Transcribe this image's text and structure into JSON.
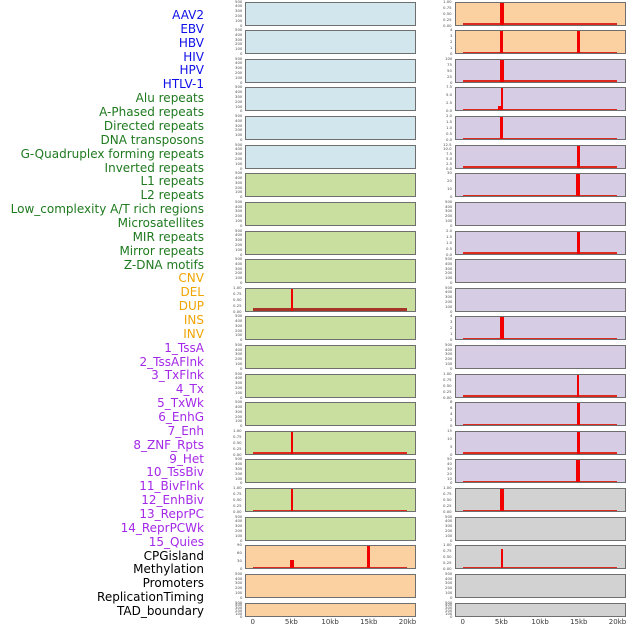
{
  "chart_data": {
    "type": "line",
    "title": "",
    "x_axis": {
      "tick_labels": [
        "0",
        "5kb",
        "10kb",
        "15kb",
        "20kb"
      ],
      "tick_kb": [
        0,
        5,
        10,
        15,
        20
      ],
      "range_kb": [
        0,
        20
      ]
    },
    "categories": {
      "virus": {
        "label_color": "#0f0fe8",
        "panel_color": "#d2e6ee"
      },
      "repeat": {
        "label_color": "#1f7a1f",
        "panel_color": "#c8dfa0"
      },
      "sv": {
        "label_color": "#f0a400",
        "panel_color": "#fbd1a2"
      },
      "chromatin": {
        "label_color": "#a428e8",
        "panel_color": "#d6cce4"
      },
      "other": {
        "label_color": "#000000",
        "panel_color": "#d2d2d2"
      }
    },
    "colors": {
      "spike": "#f20000",
      "baseline": "#dd2a1e",
      "baseline_dark": "#a63528",
      "panel_border": "#6f6f6f",
      "tick_text": "#4a4a4a",
      "axis_text": "#3c3c3c"
    },
    "rows": [
      {
        "l": "AAV2",
        "c": "virus",
        "col": 1,
        "t": [
          "500",
          "400",
          "300",
          "200",
          "100",
          "0"
        ],
        "s": [],
        "b": 0
      },
      {
        "l": "EBV",
        "c": "virus",
        "col": 1,
        "t": [
          "500",
          "400",
          "300",
          "200",
          "100",
          "0"
        ],
        "s": [],
        "b": 0
      },
      {
        "l": "HBV",
        "c": "virus",
        "col": 1,
        "t": [
          "500",
          "400",
          "300",
          "200",
          "100",
          "0"
        ],
        "s": [],
        "b": 0
      },
      {
        "l": "HIV",
        "c": "virus",
        "col": 1,
        "t": [
          "500",
          "400",
          "300",
          "200",
          "100",
          "0"
        ],
        "s": [],
        "b": 0
      },
      {
        "l": "HPV",
        "c": "virus",
        "col": 1,
        "t": [
          "500",
          "400",
          "300",
          "200",
          "100",
          "0"
        ],
        "s": [],
        "b": 0
      },
      {
        "l": "HTLV-1",
        "c": "virus",
        "col": 1,
        "t": [
          "500",
          "400",
          "300",
          "200",
          "100",
          "0"
        ],
        "s": [],
        "b": 0
      },
      {
        "l": "Alu repeats",
        "c": "repeat",
        "col": 1,
        "t": [
          "500",
          "400",
          "300",
          "200",
          "100",
          "0"
        ],
        "s": [],
        "b": 0
      },
      {
        "l": "A-Phased repeats",
        "c": "repeat",
        "col": 1,
        "t": [
          "500",
          "400",
          "300",
          "200",
          "100",
          "0"
        ],
        "s": [],
        "b": 0
      },
      {
        "l": "Directed repeats",
        "c": "repeat",
        "col": 1,
        "t": [
          "500",
          "400",
          "300",
          "200",
          "100",
          "0"
        ],
        "s": [],
        "b": 0
      },
      {
        "l": "DNA transposons",
        "c": "repeat",
        "col": 1,
        "t": [
          "500",
          "400",
          "300",
          "200",
          "100",
          "0"
        ],
        "s": [],
        "b": 0
      },
      {
        "l": "G-Quadruplex forming repeats",
        "c": "repeat",
        "col": 1,
        "t": [
          "1.00",
          "0.75",
          "0.50",
          "0.25",
          "0.00"
        ],
        "s": [
          {
            "kb": 5,
            "v": 1.0,
            "h": 1,
            "w": 2.5
          }
        ],
        "b": 2
      },
      {
        "l": "Inverted repeats",
        "c": "repeat",
        "col": 1,
        "t": [
          "500",
          "400",
          "300",
          "200",
          "100",
          "0"
        ],
        "s": [],
        "b": 0
      },
      {
        "l": "L1 repeats",
        "c": "repeat",
        "col": 1,
        "t": [
          "500",
          "400",
          "300",
          "200",
          "100",
          "0"
        ],
        "s": [],
        "b": 0
      },
      {
        "l": "L2 repeats",
        "c": "repeat",
        "col": 1,
        "t": [
          "500",
          "400",
          "300",
          "200",
          "100",
          "0"
        ],
        "s": [],
        "b": 0
      },
      {
        "l": "Low_complexity A/T rich regions",
        "c": "repeat",
        "col": 1,
        "t": [
          "500",
          "400",
          "300",
          "200",
          "100",
          "0"
        ],
        "s": [],
        "b": 0
      },
      {
        "l": "Microsatellites",
        "c": "repeat",
        "col": 1,
        "t": [
          "1.00",
          "0.75",
          "0.50",
          "0.25",
          "0.00"
        ],
        "s": [
          {
            "kb": 5,
            "v": 1.0,
            "h": 1,
            "w": 2
          }
        ],
        "b": 1
      },
      {
        "l": "MIR repeats",
        "c": "repeat",
        "col": 1,
        "t": [
          "500",
          "400",
          "300",
          "200",
          "100",
          "0"
        ],
        "s": [],
        "b": 0
      },
      {
        "l": "Mirror repeats",
        "c": "repeat",
        "col": 1,
        "t": [
          "1.00",
          "0.75",
          "0.50",
          "0.25",
          "0.00"
        ],
        "s": [
          {
            "kb": 5,
            "v": 1.0,
            "h": 1,
            "w": 2
          }
        ],
        "b": 1
      },
      {
        "l": "Z-DNA motifs",
        "c": "repeat",
        "col": 1,
        "t": [
          "500",
          "400",
          "300",
          "200",
          "100",
          "0"
        ],
        "s": [],
        "b": 0
      },
      {
        "l": "CNV",
        "c": "sv",
        "col": 1,
        "t": [
          "90",
          "60",
          "30",
          "0"
        ],
        "s": [
          {
            "kb": 5,
            "v": 35,
            "h": 0.4,
            "w": 4
          },
          {
            "kb": 15,
            "v": 95,
            "h": 1,
            "w": 3
          }
        ],
        "b": 1
      },
      {
        "l": "DEL",
        "c": "sv",
        "col": 1,
        "t": [
          "500",
          "400",
          "300",
          "200",
          "100",
          "0"
        ],
        "s": [],
        "b": 0
      },
      {
        "l": "DUP",
        "c": "sv",
        "col": 1,
        "t": [
          "500",
          "400",
          "300",
          "200",
          "100",
          "0"
        ],
        "s": [],
        "b": 0
      },
      {
        "l": "INS",
        "c": "sv",
        "col": 2,
        "t": [
          "1.00",
          "0.75",
          "0.50",
          "0.25",
          "0.00"
        ],
        "s": [
          {
            "kb": 5,
            "v": 1.0,
            "h": 1,
            "w": 4
          }
        ],
        "b": 1
      },
      {
        "l": "INV",
        "c": "sv",
        "col": 2,
        "t": [
          "4",
          "3",
          "2",
          "1",
          "0"
        ],
        "s": [
          {
            "kb": 5,
            "v": 4,
            "h": 1,
            "w": 3
          },
          {
            "kb": 15,
            "v": 4,
            "h": 1,
            "w": 3
          }
        ],
        "b": 1
      },
      {
        "l": "1_TssA",
        "c": "chromatin",
        "col": 2,
        "t": [
          "100",
          "75",
          "50",
          "25",
          "0"
        ],
        "s": [
          {
            "kb": 5,
            "v": 100,
            "h": 1,
            "w": 4
          }
        ],
        "b": 1
      },
      {
        "l": "2_TssAFlnk",
        "c": "chromatin",
        "col": 2,
        "t": [
          "7.5",
          "5.0",
          "2.5",
          "0.0"
        ],
        "s": [
          {
            "kb": 5,
            "v": 8.5,
            "h": 1,
            "w": 2
          },
          {
            "kb": 4.8,
            "v": 1.8,
            "h": 0.22,
            "w": 4
          }
        ],
        "b": 1
      },
      {
        "l": "3_TxFlnk",
        "c": "chromatin",
        "col": 2,
        "t": [
          "2.0",
          "1.5",
          "1.0",
          "0.5",
          "0.0"
        ],
        "s": [
          {
            "kb": 5,
            "v": 2.1,
            "h": 1,
            "w": 3
          }
        ],
        "b": 1
      },
      {
        "l": "4_Tx",
        "c": "chromatin",
        "col": 2,
        "t": [
          "12.5",
          "10.0",
          "7.5",
          "5.0",
          "2.5",
          "0.0"
        ],
        "s": [
          {
            "kb": 15,
            "v": 13,
            "h": 1,
            "w": 3
          }
        ],
        "b": 1
      },
      {
        "l": "5_TxWk",
        "c": "chromatin",
        "col": 2,
        "t": [
          "30",
          "20",
          "10",
          "0"
        ],
        "s": [
          {
            "kb": 15,
            "v": 32,
            "h": 1,
            "w": 4
          }
        ],
        "b": 1
      },
      {
        "l": "6_EnhG",
        "c": "chromatin",
        "col": 2,
        "t": [
          "500",
          "400",
          "300",
          "200",
          "100",
          "0"
        ],
        "s": [],
        "b": 0
      },
      {
        "l": "7_Enh",
        "c": "chromatin",
        "col": 2,
        "t": [
          "2.0",
          "1.5",
          "1.0",
          "0.5",
          "0.0"
        ],
        "s": [
          {
            "kb": 15,
            "v": 2.1,
            "h": 1,
            "w": 3
          }
        ],
        "b": 1
      },
      {
        "l": "8_ZNF_Rpts",
        "c": "chromatin",
        "col": 2,
        "t": [
          "500",
          "400",
          "300",
          "200",
          "100",
          "0"
        ],
        "s": [],
        "b": 0
      },
      {
        "l": "9_Het",
        "c": "chromatin",
        "col": 2,
        "t": [
          "500",
          "400",
          "300",
          "200",
          "100",
          "0"
        ],
        "s": [],
        "b": 0
      },
      {
        "l": "10_TssBiv",
        "c": "chromatin",
        "col": 2,
        "t": [
          "4",
          "3",
          "2",
          "1",
          "0"
        ],
        "s": [
          {
            "kb": 5,
            "v": 4.2,
            "h": 1,
            "w": 4
          }
        ],
        "b": 1
      },
      {
        "l": "11_BivFlnk",
        "c": "chromatin",
        "col": 2,
        "t": [
          "500",
          "400",
          "300",
          "200",
          "100",
          "0"
        ],
        "s": [],
        "b": 0
      },
      {
        "l": "12_EnhBiv",
        "c": "chromatin",
        "col": 2,
        "t": [
          "1.00",
          "0.75",
          "0.50",
          "0.25",
          "0.00"
        ],
        "s": [
          {
            "kb": 15,
            "v": 1.0,
            "h": 1,
            "w": 2
          }
        ],
        "b": 1
      },
      {
        "l": "13_ReprPC",
        "c": "chromatin",
        "col": 2,
        "t": [
          "8",
          "6",
          "4",
          "2",
          "0"
        ],
        "s": [
          {
            "kb": 15,
            "v": 8.5,
            "h": 1,
            "w": 2.5
          }
        ],
        "b": 1
      },
      {
        "l": "14_ReprPCWk",
        "c": "chromatin",
        "col": 2,
        "t": [
          "15",
          "10",
          "5",
          "0"
        ],
        "s": [
          {
            "kb": 15,
            "v": 16,
            "h": 1,
            "w": 3
          }
        ],
        "b": 1
      },
      {
        "l": "15_Quies",
        "c": "chromatin",
        "col": 2,
        "t": [
          "50",
          "40",
          "30",
          "20",
          "10",
          "0"
        ],
        "s": [
          {
            "kb": 15,
            "v": 52,
            "h": 1,
            "w": 4
          }
        ],
        "b": 1
      },
      {
        "l": "CPGisland",
        "c": "other",
        "col": 2,
        "t": [
          "1.00",
          "0.75",
          "0.50",
          "0.25",
          "0.00"
        ],
        "s": [
          {
            "kb": 5,
            "v": 1.0,
            "h": 1,
            "w": 4
          }
        ],
        "b": 1
      },
      {
        "l": "Methylation",
        "c": "other",
        "col": 2,
        "t": [
          "500",
          "400",
          "300",
          "200",
          "100",
          "0"
        ],
        "s": [],
        "b": 0
      },
      {
        "l": "Promoters",
        "c": "other",
        "col": 2,
        "t": [
          "1.00",
          "0.75",
          "0.50",
          "0.25",
          "0.00"
        ],
        "s": [
          {
            "kb": 5,
            "v": 0.9,
            "h": 0.88,
            "w": 1.5
          }
        ],
        "b": 1
      },
      {
        "l": "ReplicationTiming",
        "c": "other",
        "col": 2,
        "t": [
          "500",
          "400",
          "300",
          "200",
          "100",
          "0"
        ],
        "s": [],
        "b": 0
      },
      {
        "l": "TAD_boundary",
        "c": "other",
        "col": 2,
        "t": [
          "500",
          "400",
          "300",
          "200",
          "100",
          "0"
        ],
        "s": [],
        "b": 0
      }
    ]
  }
}
